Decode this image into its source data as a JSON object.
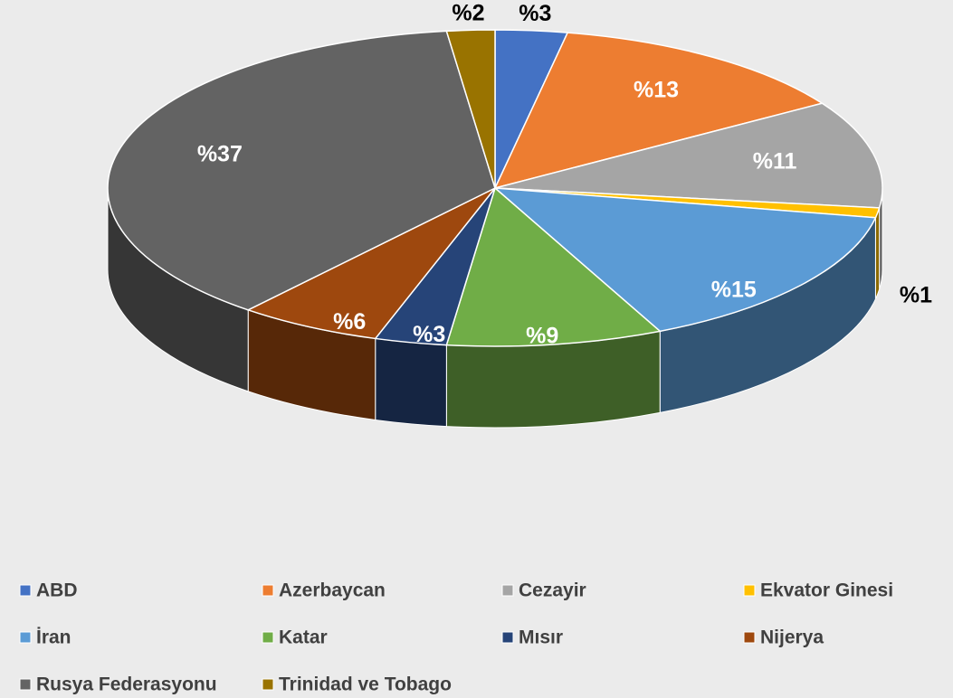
{
  "chart_data": {
    "type": "pie3d",
    "categories": [
      "ABD",
      "Azerbaycan",
      "Cezayir",
      "Ekvator Ginesi",
      "İran",
      "Katar",
      "Mısır",
      "Nijerya",
      "Rusya Federasyonu",
      "Trinidad ve Tobago"
    ],
    "values": [
      3,
      13,
      11,
      1,
      15,
      9,
      3,
      6,
      37,
      2
    ],
    "value_labels": [
      "%3",
      "%13",
      "%11",
      "%1",
      "%15",
      "%9",
      "%3",
      "%6",
      "%37",
      "%2"
    ],
    "colors": [
      "#4472c4",
      "#ed7d31",
      "#a5a5a5",
      "#ffc000",
      "#5b9bd5",
      "#70ad47",
      "#264478",
      "#9e480e",
      "#636363",
      "#997300"
    ],
    "legend": "bottom"
  }
}
